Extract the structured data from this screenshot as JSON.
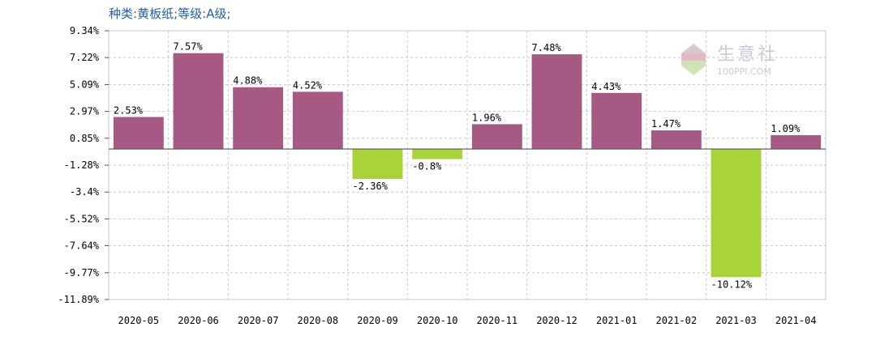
{
  "header": {
    "kind_label": "种类:",
    "kind_value": "黄板纸",
    "grade_label": ";等级:",
    "grade_value": "A级;"
  },
  "watermark": {
    "name": "生意社",
    "url": "100PPI.COM"
  },
  "colors": {
    "positive": "#a65a83",
    "negative": "#a8d43a",
    "grid": "#c8c8c8",
    "axis": "#555555",
    "header_text": "#1f5fa8"
  },
  "chart_data": {
    "type": "bar",
    "title": "",
    "xlabel": "",
    "ylabel": "",
    "categories": [
      "2020-05",
      "2020-06",
      "2020-07",
      "2020-08",
      "2020-09",
      "2020-10",
      "2020-11",
      "2020-12",
      "2021-01",
      "2021-02",
      "2021-03",
      "2021-04"
    ],
    "values": [
      2.53,
      7.57,
      4.88,
      4.52,
      -2.36,
      -0.8,
      1.96,
      7.48,
      4.43,
      1.47,
      -10.12,
      1.09
    ],
    "data_labels": [
      "2.53%",
      "7.57%",
      "4.88%",
      "4.52%",
      "-2.36%",
      "-0.8%",
      "1.96%",
      "7.48%",
      "4.43%",
      "1.47%",
      "-10.12%",
      "1.09%"
    ],
    "y_ticks": [
      9.34,
      7.22,
      5.09,
      2.97,
      0.85,
      -1.28,
      -3.4,
      -5.52,
      -7.64,
      -9.77,
      -11.89
    ],
    "y_tick_labels": [
      "9.34%",
      "7.22%",
      "5.09%",
      "2.97%",
      "0.85%",
      "-1.28%",
      "-3.4%",
      "-5.52%",
      "-7.64%",
      "-9.77%",
      "-11.89%"
    ],
    "ylim": [
      -11.89,
      9.34
    ],
    "grid": true,
    "legend": "none"
  }
}
